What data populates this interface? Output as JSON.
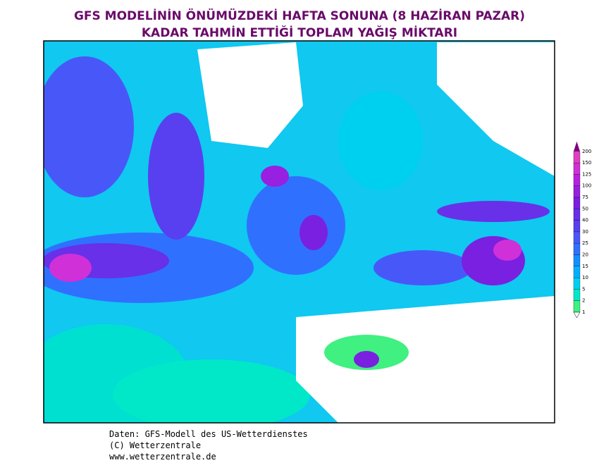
{
  "header": {
    "title": [
      "GFS MODELİNİN ÖNÜMÜZDEKİ HAFTA SONUNA (8 HAZİRAN PAZAR)",
      "KADAR TAHMİN ETTİĞİ TOPLAM YAĞIŞ MİKTARI"
    ]
  },
  "legend": {
    "levels": [
      1,
      2,
      5,
      10,
      15,
      20,
      25,
      30,
      40,
      50,
      75,
      100,
      125,
      150,
      200
    ],
    "colors": [
      "#40f080",
      "#00e8c8",
      "#00d0f0",
      "#00b0ff",
      "#1090ff",
      "#3070ff",
      "#4858f8",
      "#5840f0",
      "#6830e8",
      "#7a20e0",
      "#9820e0",
      "#b820e0",
      "#d030d8",
      "#e040c0",
      "#c000a8",
      "#800080"
    ]
  },
  "footer": [
    "Daten: GFS-Modell des US-Wetterdienstes",
    "(C) Wetterzentrale",
    "www.wetterzentrale.de"
  ]
}
